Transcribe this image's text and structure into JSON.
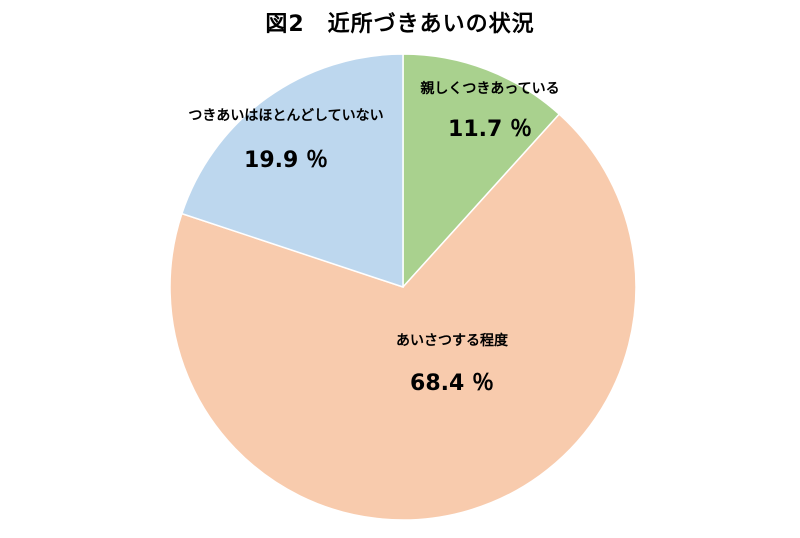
{
  "title": "図2　近所づきあいの状況",
  "chart_data": {
    "type": "pie",
    "slices": [
      {
        "label": "親しくつきあっている",
        "value": 11.7,
        "value_text": "11.7 ％",
        "color": "#A9D18E"
      },
      {
        "label": "あいさつする程度",
        "value": 68.4,
        "value_text": "68.4 ％",
        "color": "#F8CBAD"
      },
      {
        "label": "つきあいはほとんどしていない",
        "value": 19.9,
        "value_text": "19.9 ％",
        "color": "#BDD7EE"
      }
    ],
    "start_angle": "12 o'clock",
    "direction": "clockwise",
    "legend": "none"
  }
}
